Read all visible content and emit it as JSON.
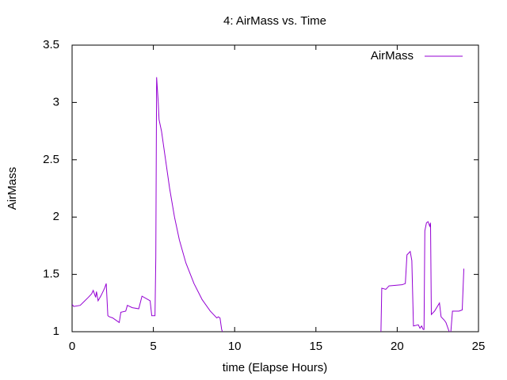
{
  "chart_data": {
    "type": "line",
    "title": "4: AirMass vs. Time",
    "x_label": "time (Elapse Hours)",
    "y_label": "AirMass",
    "x": [
      0,
      0.1,
      0.5,
      1.0,
      1.2,
      1.3,
      1.45,
      1.5,
      1.6,
      1.8,
      2.0,
      2.1,
      2.2,
      2.3,
      2.5,
      2.8,
      2.9,
      3.0,
      3.3,
      3.4,
      3.7,
      4.1,
      4.3,
      4.8,
      4.9,
      5.1,
      5.15,
      5.2,
      5.3,
      5.35,
      5.5,
      5.8,
      6.0,
      6.3,
      6.6,
      7.0,
      7.5,
      8.0,
      8.5,
      8.9,
      9.0,
      9.1,
      9.2,
      9.25,
      null,
      19.0,
      19.05,
      19.3,
      19.5,
      20.3,
      20.5,
      20.6,
      20.8,
      20.9,
      21.0,
      21.3,
      21.4,
      21.5,
      21.6,
      21.65,
      21.7,
      21.8,
      21.9,
      22.0,
      22.05,
      22.1,
      22.3,
      22.6,
      22.7,
      22.9,
      23.0,
      23.2,
      null,
      23.3,
      23.4,
      23.8,
      24.0,
      24.1
    ],
    "series": [
      {
        "name": "AirMass",
        "color": "#9400d3",
        "values": [
          1.24,
          1.22,
          1.23,
          1.3,
          1.33,
          1.36,
          1.3,
          1.35,
          1.27,
          1.32,
          1.38,
          1.42,
          1.14,
          1.13,
          1.12,
          1.09,
          1.08,
          1.17,
          1.18,
          1.23,
          1.21,
          1.2,
          1.31,
          1.27,
          1.14,
          1.14,
          1.65,
          3.22,
          3.0,
          2.85,
          2.75,
          2.45,
          2.25,
          2.0,
          1.8,
          1.6,
          1.42,
          1.28,
          1.18,
          1.12,
          1.13,
          1.12,
          1.02,
          1.0,
          null,
          1.0,
          1.38,
          1.37,
          1.4,
          1.41,
          1.42,
          1.67,
          1.7,
          1.62,
          1.05,
          1.06,
          1.03,
          1.05,
          1.02,
          1.02,
          1.88,
          1.95,
          1.96,
          1.92,
          1.95,
          1.15,
          1.18,
          1.25,
          1.13,
          1.1,
          1.08,
          1.0,
          null,
          1.0,
          1.18,
          1.18,
          1.19,
          1.55
        ]
      }
    ],
    "xlim": [
      0,
      25
    ],
    "ylim": [
      1,
      3.5
    ],
    "xticks": [
      0,
      5,
      10,
      15,
      20,
      25
    ],
    "yticks": [
      1,
      1.5,
      2,
      2.5,
      3,
      3.5
    ],
    "grid": false,
    "legend_position": "top-right"
  }
}
